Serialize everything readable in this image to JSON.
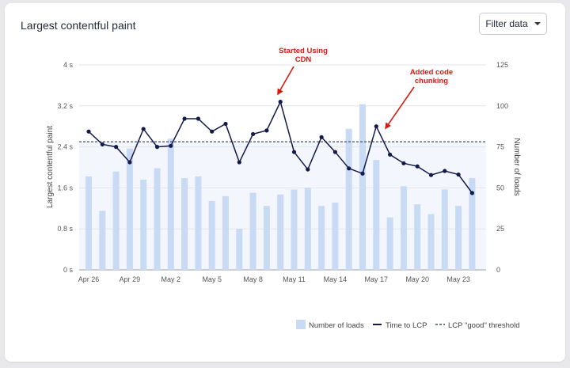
{
  "card": {
    "title": "Largest contentful paint"
  },
  "filter_button": {
    "label": "Filter data"
  },
  "chart_data": {
    "type": "bar+line",
    "y_left": {
      "label": "Largest contentful paint",
      "ticks": [
        "0 s",
        "0.8 s",
        "1.6 s",
        "2.4 s",
        "3.2 s",
        "4 s"
      ],
      "range": [
        0,
        4
      ]
    },
    "y_right": {
      "label": "Number of loads",
      "ticks": [
        "0",
        "25",
        "50",
        "75",
        "100",
        "125"
      ],
      "range": [
        0,
        125
      ]
    },
    "x_ticks": [
      "Apr 26",
      "Apr 29",
      "May 2",
      "May 5",
      "May 8",
      "May 11",
      "May 14",
      "May 17",
      "May 20",
      "May 23"
    ],
    "x_tick_indices": [
      0,
      3,
      6,
      9,
      12,
      15,
      18,
      21,
      24,
      27
    ],
    "threshold": {
      "value": 2.5,
      "label": "LCP \"good\" threshold"
    },
    "series": [
      {
        "name": "Number of loads",
        "type": "bar",
        "axis": "right",
        "values": [
          57,
          36,
          60,
          74,
          55,
          62,
          80,
          56,
          57,
          42,
          45,
          25,
          47,
          39,
          46,
          49,
          50,
          39,
          41,
          86,
          101,
          67,
          32,
          51,
          40,
          34,
          49,
          39,
          56
        ]
      },
      {
        "name": "Time to LCP",
        "type": "line",
        "axis": "left",
        "values": [
          2.7,
          2.45,
          2.4,
          2.1,
          2.75,
          2.4,
          2.42,
          2.95,
          2.95,
          2.7,
          2.85,
          2.1,
          2.65,
          2.72,
          3.28,
          2.3,
          1.96,
          2.59,
          2.3,
          1.98,
          1.88,
          2.8,
          2.25,
          2.08,
          2.02,
          1.85,
          1.93,
          1.86,
          1.5
        ]
      }
    ],
    "annotations": [
      {
        "lines": [
          "Started Using",
          "CDN"
        ],
        "index": 14
      },
      {
        "lines": [
          "Added code",
          "chunking"
        ],
        "index": 21
      }
    ],
    "legend": [
      "Number of loads",
      "Time to LCP",
      "LCP \"good\" threshold"
    ],
    "colors": {
      "bar": "#c9daf5",
      "line": "#141a4a",
      "threshold": "#444b66",
      "annotation": "#d61a0f",
      "band": "#f3f6fd"
    }
  }
}
